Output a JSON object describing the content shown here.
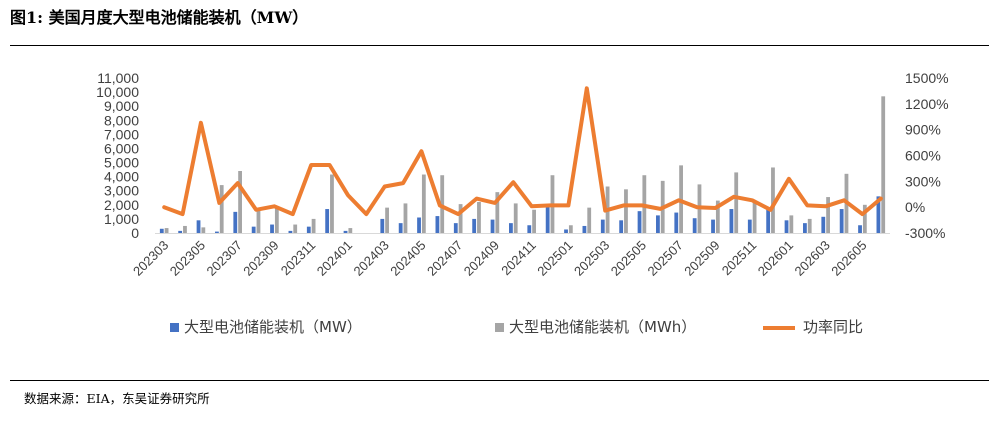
{
  "figure_title": "图1:  美国月度大型电池储能装机（MW）",
  "source": "数据来源：EIA，东吴证券研究所",
  "colors": {
    "mw": "#4472C4",
    "mwh": "#A5A5A5",
    "yoy": "#ED7D31"
  },
  "chart_data": {
    "type": "bar",
    "categories": [
      "202303",
      "202304",
      "202305",
      "202306",
      "202307",
      "202308",
      "202309",
      "202310",
      "202311",
      "202312",
      "202401",
      "202402",
      "202403",
      "202404",
      "202405",
      "202406",
      "202407",
      "202408",
      "202409",
      "202410",
      "202411",
      "202412",
      "202501",
      "202502",
      "202503",
      "202504",
      "202505",
      "202506",
      "202507",
      "202508",
      "202509",
      "202510",
      "202511",
      "202512",
      "202601",
      "202602",
      "202603",
      "202604",
      "202605",
      "202606"
    ],
    "x_tick_labels": [
      "202303",
      "202305",
      "202307",
      "202309",
      "202311",
      "202401",
      "202403",
      "202405",
      "202407",
      "202409",
      "202411",
      "202501",
      "202503",
      "202505",
      "202507",
      "202509",
      "202511",
      "202601",
      "202603",
      "202605"
    ],
    "y_ticks": [
      "0",
      "1,000",
      "2,000",
      "3,000",
      "4,000",
      "5,000",
      "6,000",
      "7,000",
      "8,000",
      "9,000",
      "10,000",
      "11,000"
    ],
    "y2_ticks": [
      "-300%",
      "0%",
      "300%",
      "600%",
      "900%",
      "1200%",
      "1500%"
    ],
    "ylim": [
      0,
      11000
    ],
    "y2lim": [
      -300,
      1500
    ],
    "legend_position": "bottom",
    "series": [
      {
        "name": "大型电池储能装机（MW）",
        "type": "bar",
        "axis": "left",
        "values": [
          300,
          150,
          900,
          100,
          1500,
          450,
          600,
          150,
          450,
          1700,
          150,
          0,
          1000,
          700,
          1100,
          1200,
          700,
          1000,
          950,
          700,
          550,
          1900,
          250,
          500,
          950,
          900,
          1550,
          1250,
          1450,
          1050,
          950,
          1700,
          950,
          1700,
          900,
          700,
          1150,
          1700,
          550,
          2600
        ]
      },
      {
        "name": "大型电池储能装机（MWh）",
        "type": "bar",
        "axis": "left",
        "values": [
          350,
          500,
          400,
          3400,
          4400,
          1600,
          1750,
          600,
          1000,
          4150,
          350,
          0,
          1800,
          2100,
          4150,
          4100,
          2050,
          2200,
          2900,
          2100,
          1650,
          4100,
          550,
          1800,
          3300,
          3100,
          4100,
          3700,
          4800,
          3450,
          2300,
          4300,
          2250,
          4650,
          1250,
          1000,
          2550,
          4200,
          2000,
          9700
        ]
      },
      {
        "name": "功率同比",
        "type": "line",
        "axis": "right",
        "values": [
          0,
          -80,
          980,
          50,
          280,
          -30,
          10,
          -80,
          490,
          490,
          140,
          -80,
          240,
          280,
          650,
          20,
          -80,
          100,
          50,
          290,
          10,
          20,
          20,
          1380,
          -40,
          20,
          20,
          -20,
          80,
          0,
          -10,
          120,
          80,
          -30,
          330,
          20,
          10,
          80,
          -80,
          100
        ]
      }
    ]
  }
}
